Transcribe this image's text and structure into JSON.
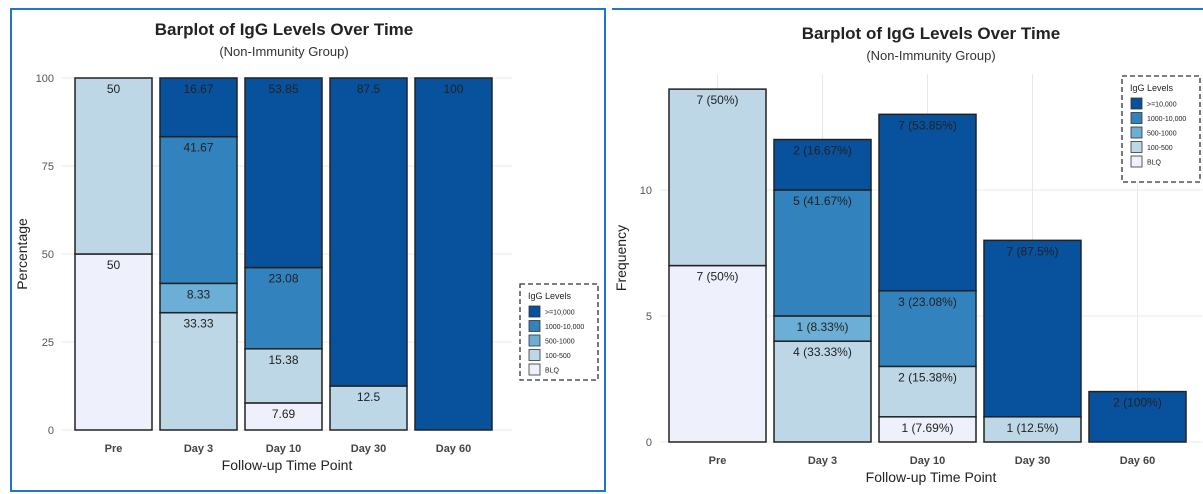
{
  "colors": {
    "BLQ": "#eef1fb",
    "100-500": "#bdd7e7",
    "500-1000": "#6baed6",
    "1000-10,000": "#3182bd",
    ">=10,000": "#08519c",
    "grid": "#e8e8e8",
    "border": "#1f77c9"
  },
  "chart_data": [
    {
      "type": "bar",
      "stacked": true,
      "title": "Barplot of IgG Levels Over Time",
      "subtitle": "(Non-Immunity Group)",
      "xlabel": "Follow-up Time Point",
      "ylabel": "Percentage",
      "ylim": [
        0,
        100
      ],
      "yticks": [
        0,
        25,
        50,
        75,
        100
      ],
      "categories": [
        "Pre",
        "Day 3",
        "Day 10",
        "Day 30",
        "Day 60"
      ],
      "legend_title": "IgG Levels",
      "legend_position": "right",
      "legend_labels": [
        ">=10,000",
        "1000-10,000",
        "500-1000",
        "100-500",
        "BLQ"
      ],
      "series": [
        {
          "name": "BLQ",
          "values": [
            50,
            0,
            7.69,
            0,
            0
          ],
          "labels": [
            "50",
            "",
            "7.69",
            "",
            ""
          ]
        },
        {
          "name": "100-500",
          "values": [
            50,
            33.33,
            15.38,
            12.5,
            0
          ],
          "labels": [
            "50",
            "33.33",
            "15.38",
            "12.5",
            ""
          ]
        },
        {
          "name": "500-1000",
          "values": [
            0,
            8.33,
            0,
            0,
            0
          ],
          "labels": [
            "",
            "8.33",
            "",
            "",
            ""
          ]
        },
        {
          "name": "1000-10,000",
          "values": [
            0,
            41.67,
            23.08,
            0,
            0
          ],
          "labels": [
            "",
            "41.67",
            "23.08",
            "",
            ""
          ]
        },
        {
          "name": ">=10,000",
          "values": [
            0,
            16.67,
            53.85,
            87.5,
            100
          ],
          "labels": [
            "",
            "16.67",
            "53.85",
            "87.5",
            "100"
          ]
        }
      ]
    },
    {
      "type": "bar",
      "stacked": true,
      "title": "Barplot of IgG Levels Over Time",
      "subtitle": "(Non-Immunity Group)",
      "xlabel": "Follow-up Time Point",
      "ylabel": "Frequency",
      "ylim": [
        0,
        14.6
      ],
      "yticks": [
        0,
        5,
        10
      ],
      "categories": [
        "Pre",
        "Day 3",
        "Day 10",
        "Day 30",
        "Day 60"
      ],
      "legend_title": "IgG Levels",
      "legend_position": "top-right",
      "legend_labels": [
        ">=10,000",
        "1000-10,000",
        "500-1000",
        "100-500",
        "BLQ"
      ],
      "series": [
        {
          "name": "BLQ",
          "values": [
            7,
            0,
            1,
            0,
            0
          ],
          "labels": [
            "7 (50%)",
            "",
            "1 (7.69%)",
            "",
            ""
          ]
        },
        {
          "name": "100-500",
          "values": [
            7,
            4,
            2,
            1,
            0
          ],
          "labels": [
            "7 (50%)",
            "4 (33.33%)",
            "2 (15.38%)",
            "1 (12.5%)",
            ""
          ]
        },
        {
          "name": "500-1000",
          "values": [
            0,
            1,
            0,
            0,
            0
          ],
          "labels": [
            "",
            "1 (8.33%)",
            "",
            "",
            ""
          ]
        },
        {
          "name": "1000-10,000",
          "values": [
            0,
            5,
            3,
            0,
            0
          ],
          "labels": [
            "",
            "5 (41.67%)",
            "3 (23.08%)",
            "",
            ""
          ]
        },
        {
          "name": ">=10,000",
          "values": [
            0,
            2,
            7,
            7,
            2
          ],
          "labels": [
            "",
            "2 (16.67%)",
            "7 (53.85%)",
            "7 (87.5%)",
            "2 (100%)"
          ]
        }
      ]
    }
  ]
}
